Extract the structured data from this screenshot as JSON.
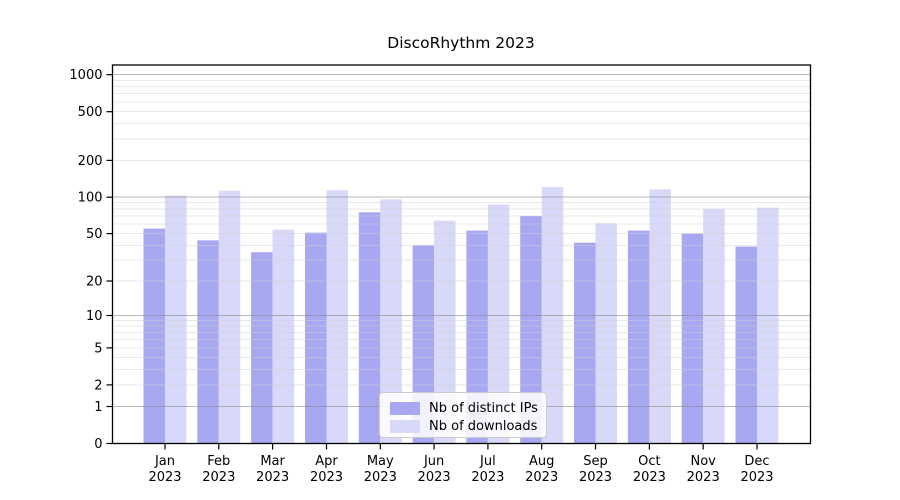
{
  "title": "DiscoRhythm 2023",
  "chart_data": {
    "type": "bar",
    "title": "DiscoRhythm 2023",
    "categories": [
      "Jan 2023",
      "Feb 2023",
      "Mar 2023",
      "Apr 2023",
      "May 2023",
      "Jun 2023",
      "Jul 2023",
      "Aug 2023",
      "Sep 2023",
      "Oct 2023",
      "Nov 2023",
      "Dec 2023"
    ],
    "series": [
      {
        "name": "Nb of distinct IPs",
        "color": "#a8a8f2",
        "values": [
          55,
          44,
          35,
          51,
          75,
          40,
          53,
          70,
          42,
          53,
          50,
          39
        ]
      },
      {
        "name": "Nb of downloads",
        "color": "#d8d8f8",
        "values": [
          103,
          113,
          54,
          114,
          96,
          64,
          87,
          121,
          61,
          116,
          80,
          82
        ]
      }
    ],
    "xlabel": "",
    "ylabel": "",
    "yscale": "log1p",
    "ylim": [
      0,
      1200
    ],
    "yticks": [
      0,
      1,
      2,
      5,
      10,
      20,
      50,
      100,
      200,
      500,
      1000
    ],
    "major_gridlines": [
      1,
      10,
      100,
      1000
    ],
    "minor_gridlines": [
      2,
      3,
      4,
      5,
      6,
      7,
      8,
      9,
      20,
      30,
      40,
      50,
      60,
      70,
      80,
      90,
      200,
      300,
      400,
      500,
      600,
      700,
      800,
      900
    ],
    "grid": true,
    "legend_position": "lower center",
    "axis_color": "#000000",
    "major_grid_color": "#8b8b8b",
    "minor_grid_color": "#cfcfcf"
  }
}
